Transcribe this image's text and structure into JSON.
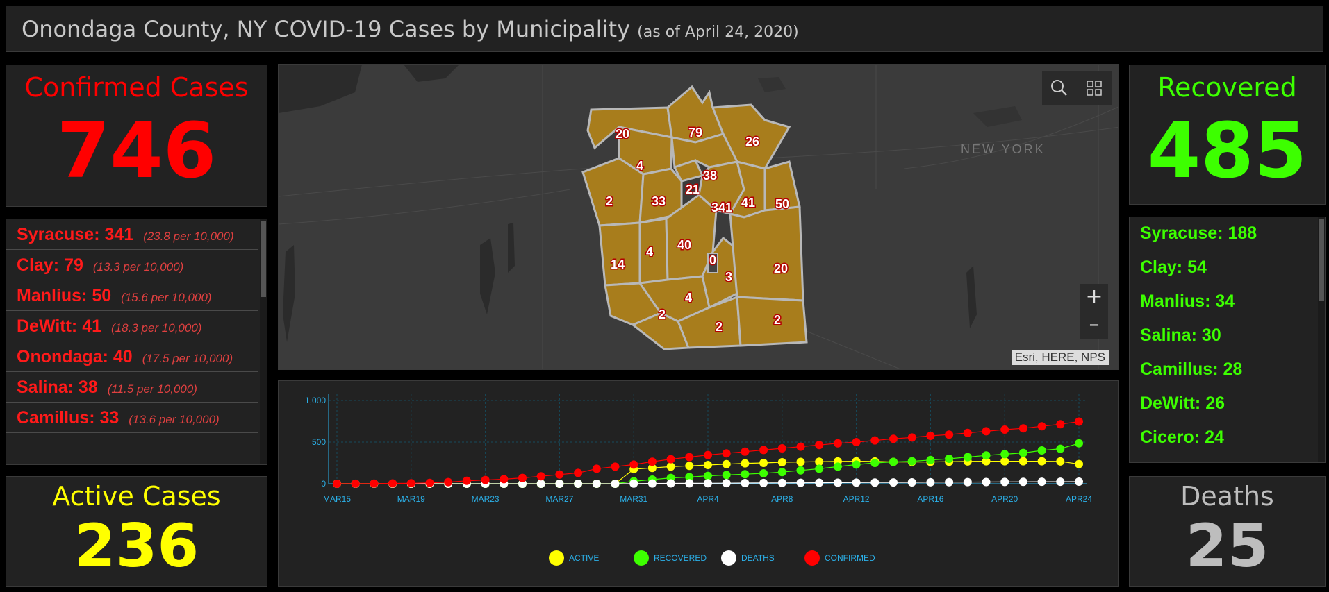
{
  "header": {
    "title": "Onondaga County, NY COVID-19 Cases by Municipality",
    "subtitle": "(as of April 24, 2020)"
  },
  "confirmed": {
    "label": "Confirmed Cases",
    "value": "746"
  },
  "recovered": {
    "label": "Recovered",
    "value": "485"
  },
  "active": {
    "label": "Active Cases",
    "value": "236"
  },
  "deaths": {
    "label": "Deaths",
    "value": "25"
  },
  "cases_list": [
    {
      "name": "Syracuse: 341",
      "rate": "(23.8 per 10,000)"
    },
    {
      "name": "Clay: 79",
      "rate": "(13.3 per 10,000)"
    },
    {
      "name": "Manlius: 50",
      "rate": "(15.6 per 10,000)"
    },
    {
      "name": "DeWitt: 41",
      "rate": "(18.3 per 10,000)"
    },
    {
      "name": "Onondaga: 40",
      "rate": "(17.5 per 10,000)"
    },
    {
      "name": "Salina: 38",
      "rate": "(11.5 per 10,000)"
    },
    {
      "name": "Camillus: 33",
      "rate": "(13.6 per 10,000)"
    }
  ],
  "recovered_list": [
    "Syracuse: 188",
    "Clay: 54",
    "Manlius: 34",
    "Salina: 30",
    "Camillus: 28",
    "DeWitt: 26",
    "Cicero: 24"
  ],
  "map": {
    "region_label": "NEW YORK",
    "attribution": "Esri, HERE, NPS",
    "municipality_counts": [
      "20",
      "79",
      "26",
      "4",
      "38",
      "21",
      "2",
      "33",
      "341",
      "41",
      "50",
      "40",
      "14",
      "4",
      "0",
      "3",
      "20",
      "4",
      "2",
      "2",
      "2"
    ],
    "icons": {
      "search": "search-icon",
      "basemap": "basemap-gallery-icon",
      "zoom_in": "+",
      "zoom_out": "–"
    },
    "fill_color": "#a87d1c"
  },
  "chart_data": {
    "type": "line",
    "x": [
      "MAR15",
      "MAR16",
      "MAR17",
      "MAR18",
      "MAR19",
      "MAR20",
      "MAR21",
      "MAR22",
      "MAR23",
      "MAR24",
      "MAR25",
      "MAR26",
      "MAR27",
      "MAR28",
      "MAR29",
      "MAR30",
      "MAR31",
      "APR1",
      "APR2",
      "APR3",
      "APR4",
      "APR5",
      "APR6",
      "APR7",
      "APR8",
      "APR9",
      "APR10",
      "APR11",
      "APR12",
      "APR13",
      "APR14",
      "APR15",
      "APR16",
      "APR17",
      "APR18",
      "APR19",
      "APR20",
      "APR21",
      "APR22",
      "APR23",
      "APR24"
    ],
    "tick_labels": [
      "MAR15",
      "MAR19",
      "MAR23",
      "MAR27",
      "MAR31",
      "APR4",
      "APR8",
      "APR12",
      "APR16",
      "APR20",
      "APR24"
    ],
    "ylim": [
      0,
      1000
    ],
    "yticks": [
      "0",
      "500",
      "1,000"
    ],
    "grid": true,
    "legend_position": "bottom",
    "series": [
      {
        "name": "ACTIVE",
        "color": "#ffff00",
        "values": [
          0,
          0,
          0,
          0,
          0,
          0,
          0,
          0,
          0,
          0,
          0,
          0,
          0,
          0,
          0,
          0,
          175,
          190,
          205,
          215,
          225,
          235,
          245,
          250,
          258,
          262,
          265,
          268,
          270,
          268,
          262,
          262,
          262,
          265,
          268,
          270,
          270,
          270,
          270,
          268,
          236
        ]
      },
      {
        "name": "RECOVERED",
        "color": "#3dff00",
        "values": [
          0,
          0,
          0,
          0,
          0,
          0,
          0,
          0,
          0,
          0,
          0,
          0,
          0,
          0,
          0,
          0,
          30,
          50,
          70,
          80,
          95,
          105,
          115,
          125,
          140,
          160,
          180,
          205,
          230,
          250,
          262,
          270,
          285,
          300,
          320,
          340,
          355,
          370,
          400,
          420,
          485
        ]
      },
      {
        "name": "DEATHS",
        "color": "#ffffff",
        "values": [
          0,
          0,
          0,
          0,
          0,
          0,
          0,
          0,
          0,
          0,
          0,
          0,
          0,
          0,
          0,
          0,
          2,
          3,
          4,
          5,
          6,
          7,
          8,
          9,
          10,
          11,
          12,
          13,
          14,
          15,
          16,
          17,
          18,
          19,
          20,
          21,
          22,
          23,
          24,
          24,
          25
        ]
      },
      {
        "name": "CONFIRMED",
        "color": "#ff0000",
        "values": [
          0,
          1,
          2,
          4,
          6,
          10,
          20,
          35,
          45,
          55,
          70,
          90,
          110,
          130,
          180,
          205,
          230,
          265,
          295,
          320,
          345,
          365,
          385,
          405,
          425,
          445,
          465,
          485,
          500,
          520,
          540,
          555,
          575,
          590,
          610,
          630,
          650,
          665,
          690,
          715,
          746
        ]
      }
    ]
  }
}
